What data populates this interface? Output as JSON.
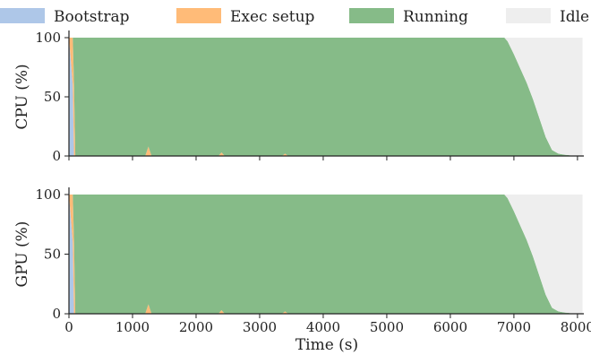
{
  "chart_data": {
    "type": "area",
    "stacked": true,
    "legend": {
      "placement": "top",
      "items": [
        {
          "name": "Bootstrap",
          "color": "#aec7e8"
        },
        {
          "name": "Exec setup",
          "color": "#ffbb78"
        },
        {
          "name": "Running",
          "color": "#86bb88"
        },
        {
          "name": "Idle",
          "color": "#eeeeee"
        }
      ]
    },
    "xlabel": "Time (s)",
    "xlim": [
      0,
      8100
    ],
    "xticks": [
      0,
      1000,
      2000,
      3000,
      4000,
      5000,
      6000,
      7000,
      8000
    ],
    "xtick_labels": [
      "0",
      "1000",
      "2000",
      "3000",
      "4000",
      "5000",
      "6000",
      "7000",
      "8000"
    ],
    "grid": false,
    "panels": [
      {
        "ylabel": "CPU (%)",
        "ylim": [
          0,
          100
        ],
        "yticks": [
          0,
          50,
          100
        ],
        "ytick_labels": [
          "0",
          "50",
          "100"
        ],
        "x": [
          0,
          60,
          80,
          100,
          1200,
          1250,
          1300,
          2350,
          2400,
          2450,
          3350,
          3400,
          3450,
          6850,
          6900,
          7000,
          7100,
          7200,
          7300,
          7400,
          7500,
          7600,
          7700,
          7800,
          8000,
          8080
        ],
        "series": [
          {
            "name": "Bootstrap",
            "values": [
              100,
              60,
              0,
              0,
              0,
              0,
              0,
              0,
              0,
              0,
              0,
              0,
              0,
              0,
              0,
              0,
              0,
              0,
              0,
              0,
              0,
              0,
              0,
              0,
              0,
              0
            ]
          },
          {
            "name": "Exec setup",
            "values": [
              0,
              40,
              60,
              0,
              0,
              8,
              0,
              0,
              3,
              0,
              0,
              2,
              0,
              0,
              0,
              0,
              0,
              0,
              0,
              0,
              0,
              0,
              0,
              0,
              0,
              0
            ]
          },
          {
            "name": "Running",
            "values": [
              0,
              0,
              40,
              100,
              100,
              92,
              100,
              100,
              97,
              100,
              100,
              98,
              100,
              100,
              97,
              86,
              74,
              62,
              48,
              32,
              16,
              5,
              2,
              1,
              0,
              0
            ]
          },
          {
            "name": "Idle",
            "values": [
              0,
              0,
              0,
              0,
              0,
              0,
              0,
              0,
              0,
              0,
              0,
              0,
              0,
              0,
              3,
              14,
              26,
              38,
              52,
              68,
              84,
              95,
              98,
              99,
              100,
              100
            ]
          }
        ]
      },
      {
        "ylabel": "GPU (%)",
        "ylim": [
          0,
          100
        ],
        "yticks": [
          0,
          50,
          100
        ],
        "ytick_labels": [
          "0",
          "50",
          "100"
        ],
        "x": [
          0,
          60,
          80,
          100,
          1200,
          1250,
          1300,
          2350,
          2400,
          2450,
          3350,
          3400,
          3450,
          6850,
          6900,
          7000,
          7100,
          7200,
          7300,
          7400,
          7500,
          7600,
          7700,
          7800,
          8000,
          8080
        ],
        "series": [
          {
            "name": "Bootstrap",
            "values": [
              100,
              60,
              0,
              0,
              0,
              0,
              0,
              0,
              0,
              0,
              0,
              0,
              0,
              0,
              0,
              0,
              0,
              0,
              0,
              0,
              0,
              0,
              0,
              0,
              0,
              0
            ]
          },
          {
            "name": "Exec setup",
            "values": [
              0,
              40,
              60,
              0,
              0,
              8,
              0,
              0,
              3,
              0,
              0,
              2,
              0,
              0,
              0,
              0,
              0,
              0,
              0,
              0,
              0,
              0,
              0,
              0,
              0,
              0
            ]
          },
          {
            "name": "Running",
            "values": [
              0,
              0,
              40,
              100,
              100,
              92,
              100,
              100,
              97,
              100,
              100,
              98,
              100,
              100,
              97,
              86,
              74,
              62,
              48,
              32,
              16,
              5,
              2,
              1,
              0,
              0
            ]
          },
          {
            "name": "Idle",
            "values": [
              0,
              0,
              0,
              0,
              0,
              0,
              0,
              0,
              0,
              0,
              0,
              0,
              0,
              0,
              3,
              14,
              26,
              38,
              52,
              68,
              84,
              95,
              98,
              99,
              100,
              100
            ]
          }
        ]
      }
    ]
  }
}
